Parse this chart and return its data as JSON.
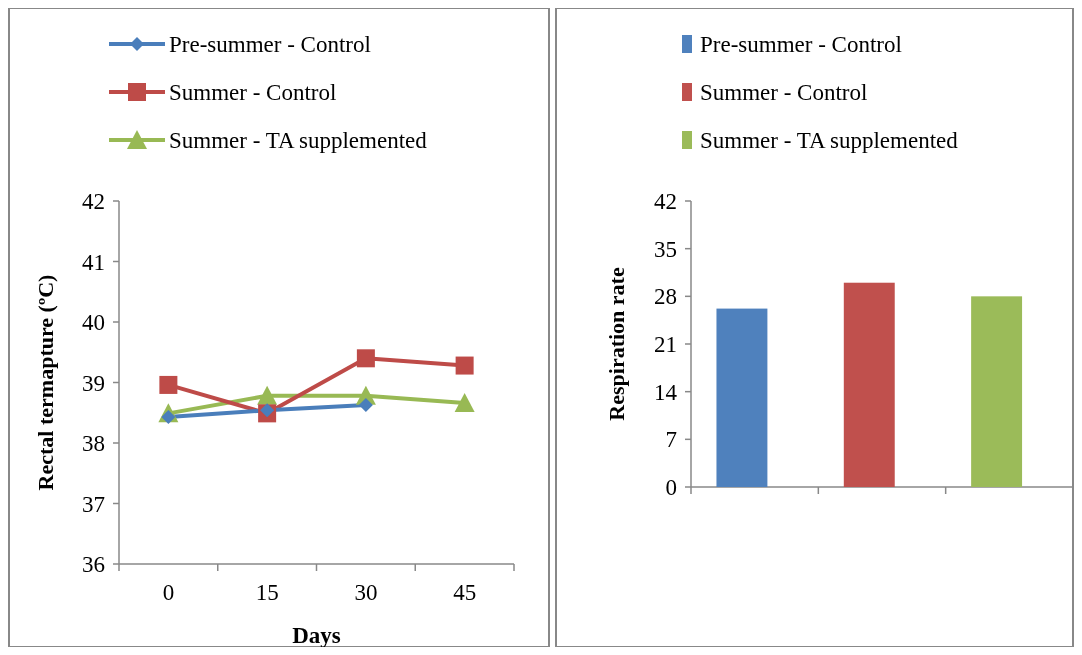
{
  "chart_data": [
    {
      "type": "line",
      "xlabel": "Days",
      "ylabel": "Rectal termapture (ºC)",
      "categories": [
        "0",
        "15",
        "30",
        "45"
      ],
      "series": [
        {
          "name": "Pre-summer - Control",
          "color": "#4a7ebb",
          "marker": "diamond",
          "values": [
            38.43,
            38.54,
            38.63,
            null
          ]
        },
        {
          "name": "Summer - Control",
          "color": "#be4b48",
          "marker": "square",
          "values": [
            38.96,
            38.49,
            39.4,
            39.28
          ]
        },
        {
          "name": "Summer - TA supplemented",
          "color": "#98b954",
          "marker": "triangle",
          "values": [
            38.49,
            38.78,
            38.78,
            38.66
          ]
        }
      ],
      "ylim": [
        36,
        42
      ],
      "yticks": [
        36,
        37,
        38,
        39,
        40,
        41,
        42
      ],
      "legend": "top",
      "grid": false
    },
    {
      "type": "bar",
      "ylabel": "Respiration rate",
      "categories": [
        null,
        null,
        null
      ],
      "series": [
        {
          "name": "Pre-summer - Control",
          "color": "#4f81bd",
          "values": [
            26.2,
            null,
            null
          ]
        },
        {
          "name": "Summer - Control",
          "color": "#c0504d",
          "values": [
            null,
            30.0,
            null
          ]
        },
        {
          "name": "Summer - TA supplemented",
          "color": "#9bbb59",
          "values": [
            null,
            null,
            28.0
          ]
        }
      ],
      "ylim": [
        0,
        42
      ],
      "yticks": [
        0,
        7,
        14,
        21,
        28,
        35,
        42
      ],
      "legend": "top",
      "grid": false
    }
  ]
}
